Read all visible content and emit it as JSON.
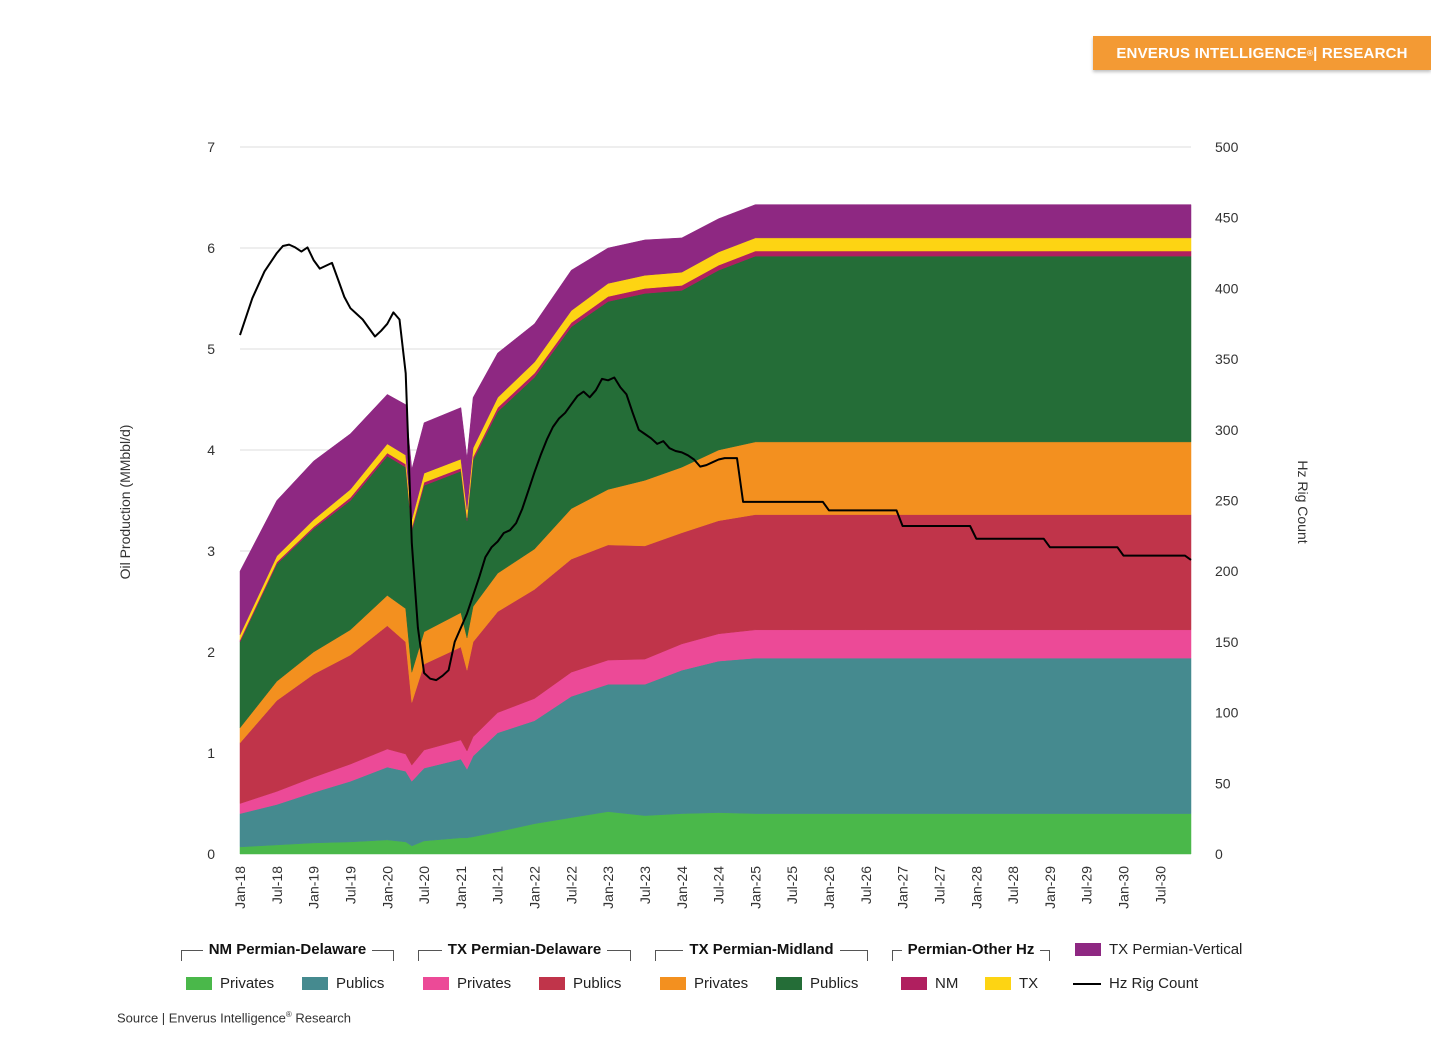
{
  "header": {
    "brand_main": "ENVERUS INTELLIGENCE",
    "brand_reg": "®",
    "brand_suffix": " | RESEARCH"
  },
  "chart_data": {
    "type": "area",
    "stacked": true,
    "xlabel": "",
    "ylabel": "Oil Production (MMbbl/d)",
    "y2label": "Hz Rig Count",
    "ylim": [
      0,
      7
    ],
    "y2lim": [
      0,
      500
    ],
    "yticks": [
      0,
      1,
      2,
      3,
      4,
      5,
      6,
      7
    ],
    "y2ticks": [
      0,
      50,
      100,
      150,
      200,
      250,
      300,
      350,
      400,
      450,
      500
    ],
    "x_start": "Jan-18",
    "x_end": "Dec-30",
    "x_tick_labels": [
      "Jan-18",
      "Jul-18",
      "Jan-19",
      "Jul-19",
      "Jan-20",
      "Jul-20",
      "Jan-21",
      "Jul-21",
      "Jan-22",
      "Jul-22",
      "Jan-23",
      "Jul-23",
      "Jan-24",
      "Jul-24",
      "Jan-25",
      "Jul-25",
      "Jan-26",
      "Jul-26",
      "Jan-27",
      "Jul-27",
      "Jan-28",
      "Jul-28",
      "Jan-29",
      "Jul-29",
      "Jan-30",
      "Jul-30"
    ],
    "x_points": [
      "Jan-18",
      "Jul-18",
      "Jan-19",
      "Jul-19",
      "Jan-20",
      "Apr-20",
      "May-20",
      "Jul-20",
      "Jan-21",
      "Feb-21",
      "Mar-21",
      "Jul-21",
      "Jan-22",
      "Jul-22",
      "Jan-23",
      "Jul-23",
      "Jan-24",
      "Jul-24",
      "Jan-25",
      "Jul-25",
      "Jan-26",
      "Jul-26",
      "Jan-27",
      "Jul-27",
      "Jan-28",
      "Jul-28",
      "Jan-29",
      "Jul-29",
      "Jan-30",
      "Jul-30",
      "Dec-30"
    ],
    "series": [
      {
        "name": "NM Permian-Delaware Privates",
        "color": "#4ab84a",
        "values": [
          0.07,
          0.09,
          0.11,
          0.12,
          0.14,
          0.12,
          0.08,
          0.13,
          0.16,
          0.16,
          0.17,
          0.22,
          0.3,
          0.36,
          0.42,
          0.38,
          0.4,
          0.41,
          0.4,
          0.4,
          0.4,
          0.4,
          0.4,
          0.4,
          0.4,
          0.4,
          0.4,
          0.4,
          0.4,
          0.4,
          0.4
        ]
      },
      {
        "name": "NM Permian-Delaware Publics",
        "color": "#458a8f",
        "values": [
          0.33,
          0.4,
          0.5,
          0.6,
          0.72,
          0.7,
          0.64,
          0.72,
          0.78,
          0.68,
          0.8,
          0.98,
          1.02,
          1.2,
          1.26,
          1.3,
          1.42,
          1.5,
          1.54,
          1.54,
          1.54,
          1.54,
          1.54,
          1.54,
          1.54,
          1.54,
          1.54,
          1.54,
          1.54,
          1.54,
          1.54
        ]
      },
      {
        "name": "TX Permian-Delaware Privates",
        "color": "#ec4a97",
        "values": [
          0.1,
          0.13,
          0.15,
          0.17,
          0.18,
          0.17,
          0.16,
          0.18,
          0.19,
          0.18,
          0.19,
          0.2,
          0.22,
          0.24,
          0.24,
          0.25,
          0.26,
          0.27,
          0.28,
          0.28,
          0.28,
          0.28,
          0.28,
          0.28,
          0.28,
          0.28,
          0.28,
          0.28,
          0.28,
          0.28,
          0.28
        ]
      },
      {
        "name": "TX Permian-Delaware Publics",
        "color": "#c0344a",
        "values": [
          0.6,
          0.9,
          1.02,
          1.08,
          1.22,
          1.11,
          0.62,
          0.85,
          0.92,
          0.8,
          0.94,
          1.0,
          1.08,
          1.12,
          1.14,
          1.12,
          1.1,
          1.12,
          1.14,
          1.14,
          1.14,
          1.14,
          1.14,
          1.14,
          1.14,
          1.14,
          1.14,
          1.14,
          1.14,
          1.14,
          1.14
        ]
      },
      {
        "name": "TX Permian-Midland Privates",
        "color": "#f3901f",
        "values": [
          0.15,
          0.19,
          0.22,
          0.25,
          0.3,
          0.33,
          0.3,
          0.32,
          0.34,
          0.32,
          0.35,
          0.38,
          0.4,
          0.5,
          0.55,
          0.65,
          0.65,
          0.7,
          0.72,
          0.72,
          0.72,
          0.72,
          0.72,
          0.72,
          0.72,
          0.72,
          0.72,
          0.72,
          0.72,
          0.72,
          0.72
        ]
      },
      {
        "name": "TX Permian-Midland Publics",
        "color": "#246d37",
        "values": [
          0.85,
          1.16,
          1.22,
          1.28,
          1.38,
          1.4,
          1.4,
          1.45,
          1.4,
          1.16,
          1.45,
          1.6,
          1.7,
          1.8,
          1.86,
          1.85,
          1.75,
          1.78,
          1.84,
          1.84,
          1.84,
          1.84,
          1.84,
          1.84,
          1.84,
          1.84,
          1.84,
          1.84,
          1.84,
          1.84,
          1.84
        ]
      },
      {
        "name": "Permian-Other Hz NM",
        "color": "#b01f5f",
        "values": [
          0.02,
          0.02,
          0.02,
          0.03,
          0.03,
          0.03,
          0.03,
          0.03,
          0.03,
          0.03,
          0.03,
          0.04,
          0.04,
          0.04,
          0.05,
          0.05,
          0.05,
          0.05,
          0.05,
          0.05,
          0.05,
          0.05,
          0.05,
          0.05,
          0.05,
          0.05,
          0.05,
          0.05,
          0.05,
          0.05,
          0.05
        ]
      },
      {
        "name": "Permian-Other Hz TX",
        "color": "#fdd413",
        "values": [
          0.05,
          0.06,
          0.07,
          0.08,
          0.09,
          0.09,
          0.08,
          0.09,
          0.09,
          0.08,
          0.09,
          0.1,
          0.11,
          0.12,
          0.13,
          0.13,
          0.13,
          0.13,
          0.13,
          0.13,
          0.13,
          0.13,
          0.13,
          0.13,
          0.13,
          0.13,
          0.13,
          0.13,
          0.13,
          0.13,
          0.13
        ]
      },
      {
        "name": "TX Permian-Vertical",
        "color": "#8e2882",
        "values": [
          0.63,
          0.55,
          0.58,
          0.55,
          0.49,
          0.5,
          0.5,
          0.5,
          0.51,
          0.51,
          0.5,
          0.44,
          0.38,
          0.4,
          0.35,
          0.35,
          0.34,
          0.33,
          0.33,
          0.33,
          0.33,
          0.33,
          0.33,
          0.33,
          0.33,
          0.33,
          0.33,
          0.33,
          0.33,
          0.33,
          0.33
        ]
      }
    ],
    "rig_count": {
      "name": "Hz Rig Count",
      "color": "#000000",
      "axis": "y2",
      "points": [
        [
          "Jan-18",
          367
        ],
        [
          "Mar-18",
          393
        ],
        [
          "May-18",
          412
        ],
        [
          "Jul-18",
          425
        ],
        [
          "Aug-18",
          430
        ],
        [
          "Sep-18",
          431
        ],
        [
          "Oct-18",
          429
        ],
        [
          "Nov-18",
          426
        ],
        [
          "Dec-18",
          429
        ],
        [
          "Jan-19",
          420
        ],
        [
          "Feb-19",
          414
        ],
        [
          "Apr-19",
          418
        ],
        [
          "May-19",
          406
        ],
        [
          "Jun-19",
          394
        ],
        [
          "Jul-19",
          386
        ],
        [
          "Aug-19",
          382
        ],
        [
          "Sep-19",
          378
        ],
        [
          "Oct-19",
          372
        ],
        [
          "Nov-19",
          366
        ],
        [
          "Dec-19",
          370
        ],
        [
          "Jan-20",
          375
        ],
        [
          "Feb-20",
          383
        ],
        [
          "Mar-20",
          378
        ],
        [
          "Apr-20",
          340
        ],
        [
          "May-20",
          220
        ],
        [
          "Jun-20",
          160
        ],
        [
          "Jul-20",
          128
        ],
        [
          "Aug-20",
          124
        ],
        [
          "Sep-20",
          123
        ],
        [
          "Oct-20",
          126
        ],
        [
          "Nov-20",
          130
        ],
        [
          "Dec-20",
          150
        ],
        [
          "Feb-21",
          170
        ],
        [
          "Apr-21",
          196
        ],
        [
          "May-21",
          210
        ],
        [
          "Jun-21",
          217
        ],
        [
          "Jul-21",
          221
        ],
        [
          "Aug-21",
          227
        ],
        [
          "Sep-21",
          229
        ],
        [
          "Oct-21",
          234
        ],
        [
          "Nov-21",
          244
        ],
        [
          "Dec-21",
          257
        ],
        [
          "Jan-22",
          270
        ],
        [
          "Feb-22",
          282
        ],
        [
          "Mar-22",
          293
        ],
        [
          "Apr-22",
          302
        ],
        [
          "May-22",
          308
        ],
        [
          "Jun-22",
          312
        ],
        [
          "Jul-22",
          318
        ],
        [
          "Aug-22",
          324
        ],
        [
          "Sep-22",
          327
        ],
        [
          "Oct-22",
          323
        ],
        [
          "Nov-22",
          328
        ],
        [
          "Dec-22",
          336
        ],
        [
          "Jan-23",
          335
        ],
        [
          "Feb-23",
          337
        ],
        [
          "Mar-23",
          330
        ],
        [
          "Apr-23",
          325
        ],
        [
          "May-23",
          312
        ],
        [
          "Jun-23",
          300
        ],
        [
          "Jul-23",
          297
        ],
        [
          "Aug-23",
          294
        ],
        [
          "Sep-23",
          290
        ],
        [
          "Oct-23",
          292
        ],
        [
          "Nov-23",
          287
        ],
        [
          "Dec-23",
          285
        ],
        [
          "Jan-24",
          284
        ],
        [
          "Feb-24",
          282
        ],
        [
          "Mar-24",
          279
        ],
        [
          "Apr-24",
          274
        ],
        [
          "May-24",
          275
        ],
        [
          "Jun-24",
          277
        ],
        [
          "Jul-24",
          279
        ],
        [
          "Aug-24",
          280
        ],
        [
          "Sep-24",
          280
        ],
        [
          "Oct-24",
          280
        ],
        [
          "Nov-24",
          249
        ],
        [
          "Jun-25",
          249
        ],
        [
          "Dec-25",
          249
        ],
        [
          "Jan-26",
          243
        ],
        [
          "Jun-26",
          243
        ],
        [
          "Dec-26",
          243
        ],
        [
          "Jan-27",
          232
        ],
        [
          "Jun-27",
          232
        ],
        [
          "Dec-27",
          232
        ],
        [
          "Jan-28",
          223
        ],
        [
          "Jun-28",
          223
        ],
        [
          "Dec-28",
          223
        ],
        [
          "Jan-29",
          217
        ],
        [
          "Jun-29",
          217
        ],
        [
          "Dec-29",
          217
        ],
        [
          "Jan-30",
          211
        ],
        [
          "Jun-30",
          211
        ],
        [
          "Nov-30",
          211
        ],
        [
          "Dec-30",
          208
        ]
      ]
    }
  },
  "legend": {
    "groups": [
      {
        "title": "NM Permian-Delaware",
        "items": [
          {
            "label": "Privates",
            "color": "#4ab84a"
          },
          {
            "label": "Publics",
            "color": "#458a8f"
          }
        ]
      },
      {
        "title": "TX Permian-Delaware",
        "items": [
          {
            "label": "Privates",
            "color": "#ec4a97"
          },
          {
            "label": "Publics",
            "color": "#c0344a"
          }
        ]
      },
      {
        "title": "TX Permian-Midland",
        "items": [
          {
            "label": "Privates",
            "color": "#f3901f"
          },
          {
            "label": "Publics",
            "color": "#246d37"
          }
        ]
      },
      {
        "title": "Permian-Other Hz",
        "items": [
          {
            "label": "NM",
            "color": "#b01f5f"
          },
          {
            "label": "TX",
            "color": "#fdd413"
          }
        ]
      }
    ],
    "vertical": {
      "label": "TX Permian-Vertical",
      "color": "#8e2882"
    },
    "rig_count_label": "Hz Rig Count"
  },
  "footer": {
    "source_prefix": "Source | Enverus Intelligence",
    "source_reg": "®",
    "source_suffix": " Research"
  }
}
